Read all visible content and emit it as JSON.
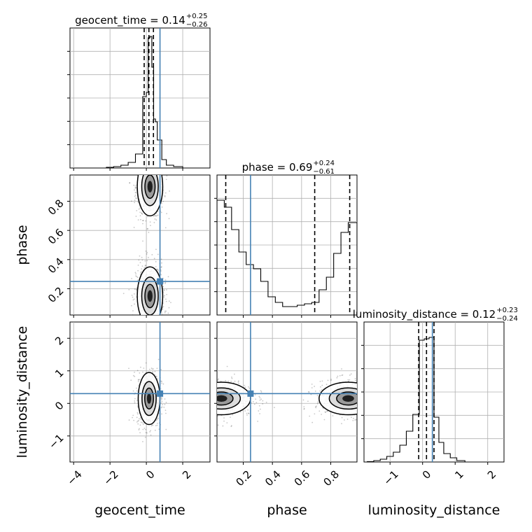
{
  "truth_color": "#4682b4",
  "grid_color": "#b0b0b0",
  "chart_data": {
    "type": "corner",
    "parameters": [
      "geocent_time",
      "phase",
      "luminosity_distance"
    ],
    "truths": {
      "geocent_time": 0.75,
      "phase": 0.25,
      "luminosity_distance": 0.3
    },
    "ranges": {
      "geocent_time": [
        -4.2,
        3.5
      ],
      "phase": [
        0.02,
        0.98
      ],
      "luminosity_distance": [
        -1.8,
        2.5
      ]
    },
    "grid": true,
    "titles": [
      {
        "param": "geocent_time",
        "label": "geocent_time = 0.14",
        "plus": "+0.25",
        "minus": "−0.26"
      },
      {
        "param": "phase",
        "label": "phase = 0.69",
        "plus": "+0.24",
        "minus": "−0.61"
      },
      {
        "param": "luminosity_distance",
        "label": "luminosity_distance = 0.12",
        "plus": "+0.23",
        "minus": "−0.24"
      }
    ],
    "axis_labels": {
      "geocent_time": "geocent_time",
      "phase": "phase",
      "luminosity_distance": "luminosity_distance"
    },
    "ticks": {
      "geocent_time": [
        {
          "v": -4,
          "t": "−4"
        },
        {
          "v": -2,
          "t": "−2"
        },
        {
          "v": 0,
          "t": "0"
        },
        {
          "v": 2,
          "t": "2"
        }
      ],
      "phase": [
        {
          "v": 0.2,
          "t": "0.2"
        },
        {
          "v": 0.4,
          "t": "0.4"
        },
        {
          "v": 0.6,
          "t": "0.6"
        },
        {
          "v": 0.8,
          "t": "0.8"
        }
      ],
      "luminosity_distance": [
        {
          "v": -1,
          "t": "−1"
        },
        {
          "v": 0,
          "t": "0"
        },
        {
          "v": 1,
          "t": "1"
        },
        {
          "v": 2,
          "t": "2"
        }
      ]
    },
    "histograms": {
      "geocent_time": {
        "edges": [
          -2.2,
          -1.8,
          -1.4,
          -1.0,
          -0.6,
          -0.2,
          0.0,
          0.1,
          0.2,
          0.3,
          0.4,
          0.5,
          0.6,
          0.7,
          0.85,
          1.1,
          1.5,
          2.0,
          2.6
        ],
        "counts": [
          0.005,
          0.01,
          0.02,
          0.04,
          0.1,
          0.51,
          0.54,
          0.93,
          0.94,
          0.72,
          0.35,
          0.33,
          0.2,
          0.2,
          0.06,
          0.02,
          0.01,
          0.0
        ],
        "quantiles": [
          -0.12,
          0.14,
          0.39
        ]
      },
      "phase": {
        "edges": [
          0.02,
          0.07,
          0.12,
          0.17,
          0.22,
          0.27,
          0.32,
          0.37,
          0.42,
          0.47,
          0.52,
          0.57,
          0.62,
          0.67,
          0.72,
          0.77,
          0.82,
          0.87,
          0.92,
          0.98
        ],
        "counts": [
          0.82,
          0.77,
          0.61,
          0.45,
          0.36,
          0.33,
          0.24,
          0.13,
          0.09,
          0.06,
          0.06,
          0.07,
          0.08,
          0.09,
          0.18,
          0.27,
          0.44,
          0.59,
          0.66
        ],
        "quantiles": [
          0.08,
          0.69,
          0.93
        ]
      },
      "luminosity_distance": {
        "edges": [
          -1.7,
          -1.5,
          -1.3,
          -1.1,
          -0.9,
          -0.7,
          -0.5,
          -0.3,
          -0.1,
          0.05,
          0.2,
          0.35,
          0.5,
          0.65,
          0.85,
          1.05,
          1.3
        ],
        "counts": [
          0.003,
          0.01,
          0.02,
          0.04,
          0.07,
          0.12,
          0.22,
          0.34,
          0.87,
          0.88,
          0.89,
          0.32,
          0.14,
          0.06,
          0.03,
          0.01
        ],
        "quantiles": [
          -0.12,
          0.12,
          0.35
        ]
      }
    },
    "density_blobs": [
      {
        "x": "geocent_time",
        "y": "phase",
        "centers": [
          [
            0.2,
            0.9
          ],
          [
            0.2,
            0.15
          ]
        ],
        "spread": [
          [
            0.35,
            0.1
          ],
          [
            0.35,
            0.1
          ]
        ]
      },
      {
        "x": "geocent_time",
        "y": "luminosity_distance",
        "centers": [
          [
            0.15,
            0.15
          ]
        ],
        "spread": [
          [
            0.3,
            0.4
          ]
        ]
      },
      {
        "x": "phase",
        "y": "luminosity_distance",
        "centers": [
          [
            0.05,
            0.15
          ],
          [
            0.92,
            0.15
          ]
        ],
        "spread": [
          [
            0.1,
            0.25
          ],
          [
            0.1,
            0.25
          ]
        ]
      }
    ]
  }
}
